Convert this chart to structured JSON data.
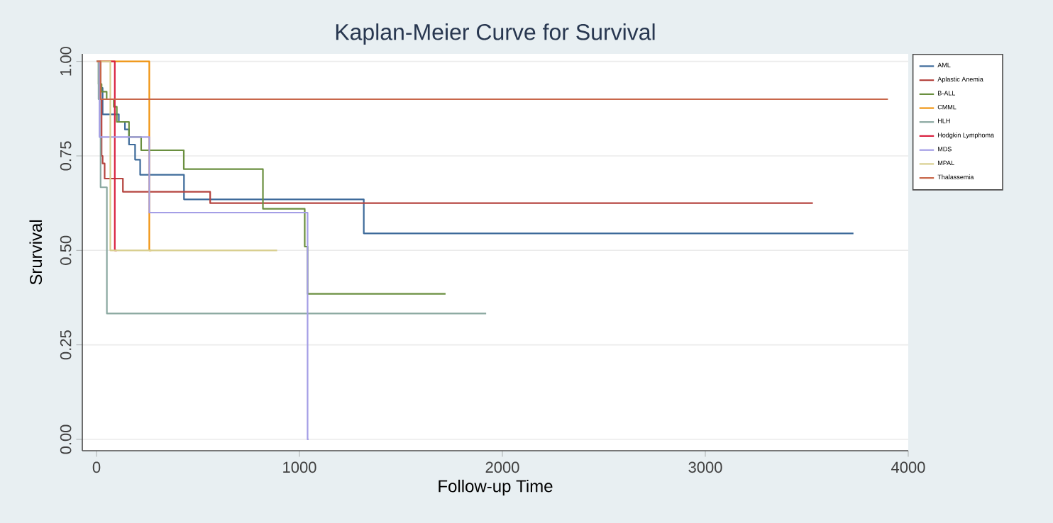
{
  "chart_data": {
    "type": "step",
    "title": "Kaplan-Meier Curve for Survival",
    "xlabel": "Follow-up Time",
    "ylabel": "Srurvival",
    "xlim": [
      -70,
      4000
    ],
    "ylim": [
      -0.03,
      1.02
    ],
    "xticks": [
      0,
      1000,
      2000,
      3000,
      4000
    ],
    "yticks": [
      {
        "value": 0,
        "label": "0.00"
      },
      {
        "value": 0.25,
        "label": "0.25"
      },
      {
        "value": 0.5,
        "label": "0.50"
      },
      {
        "value": 0.75,
        "label": "0.75"
      },
      {
        "value": 1,
        "label": "1.00"
      }
    ],
    "grid": "y",
    "legend": "top right",
    "marker": "none",
    "line_style": "solid",
    "series": [
      {
        "name": "AML",
        "color": "#3d6a9a",
        "x": [
          0,
          15,
          30,
          110,
          140,
          160,
          190,
          215,
          431,
          1317,
          3730
        ],
        "values": [
          1,
          0.93,
          0.86,
          0.84,
          0.82,
          0.78,
          0.74,
          0.7,
          0.635,
          0.545,
          0.545
        ]
      },
      {
        "name": "Aplastic Anemia",
        "color": "#b5443f",
        "x": [
          0,
          20,
          25,
          30,
          40,
          130,
          560,
          3530
        ],
        "values": [
          1,
          0.9,
          0.75,
          0.73,
          0.69,
          0.655,
          0.625,
          0.625
        ]
      },
      {
        "name": "B-ALL",
        "color": "#6a8f3f",
        "x": [
          0,
          10,
          25,
          50,
          85,
          100,
          160,
          220,
          430,
          820,
          1026,
          1040,
          1720
        ],
        "values": [
          1,
          0.94,
          0.92,
          0.9,
          0.88,
          0.84,
          0.8,
          0.765,
          0.715,
          0.61,
          0.51,
          0.385,
          0.385
        ]
      },
      {
        "name": "CMML",
        "color": "#f0930f",
        "x": [
          0,
          260,
          270
        ],
        "values": [
          1,
          0.5,
          0.5
        ]
      },
      {
        "name": "HLH",
        "color": "#8aa8a0",
        "x": [
          0,
          10,
          16,
          20,
          51,
          1920
        ],
        "values": [
          1,
          0.9,
          0.8,
          0.667,
          0.333,
          0.333
        ]
      },
      {
        "name": "Hodgkin Lymphoma",
        "color": "#d9203f",
        "x": [
          0,
          90,
          100
        ],
        "values": [
          1,
          0.5,
          0.5
        ]
      },
      {
        "name": "MDS",
        "color": "#a49ee6",
        "x": [
          0,
          15,
          260,
          1040,
          1045
        ],
        "values": [
          1,
          0.8,
          0.6,
          0,
          0
        ]
      },
      {
        "name": "MPAL",
        "color": "#d9cf8f",
        "x": [
          0,
          68,
          890
        ],
        "values": [
          1,
          0.5,
          0.5
        ]
      },
      {
        "name": "Thalassemia",
        "color": "#c8674a",
        "x": [
          0,
          20,
          3900
        ],
        "values": [
          1,
          0.9,
          0.9
        ]
      }
    ]
  }
}
